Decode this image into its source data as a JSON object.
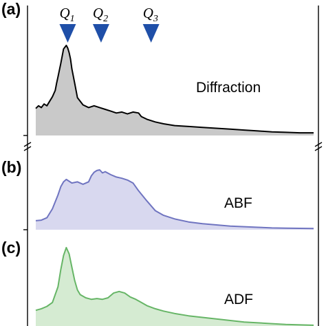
{
  "chart_data": [
    {
      "type": "area",
      "panel_label": "(a)",
      "label": "Diffraction",
      "line_color": "#000000",
      "fill_color": "#c9c9c9",
      "x": [
        0,
        0.01,
        0.02,
        0.03,
        0.04,
        0.05,
        0.06,
        0.07,
        0.075,
        0.08,
        0.09,
        0.1,
        0.11,
        0.115,
        0.12,
        0.125,
        0.13,
        0.14,
        0.15,
        0.17,
        0.19,
        0.21,
        0.23,
        0.25,
        0.27,
        0.29,
        0.31,
        0.33,
        0.35,
        0.37,
        0.38,
        0.4,
        0.43,
        0.46,
        0.5,
        0.55,
        0.6,
        0.65,
        0.7,
        0.75,
        0.8,
        0.85,
        0.9,
        0.95,
        1.0
      ],
      "y": [
        0.3,
        0.33,
        0.31,
        0.35,
        0.33,
        0.38,
        0.43,
        0.5,
        0.58,
        0.65,
        0.8,
        0.96,
        1.0,
        0.97,
        0.92,
        0.85,
        0.74,
        0.58,
        0.42,
        0.34,
        0.31,
        0.33,
        0.31,
        0.29,
        0.27,
        0.25,
        0.26,
        0.24,
        0.26,
        0.25,
        0.21,
        0.18,
        0.15,
        0.13,
        0.11,
        0.1,
        0.09,
        0.08,
        0.07,
        0.06,
        0.05,
        0.04,
        0.035,
        0.03,
        0.03
      ],
      "markers": [
        {
          "text": "Q",
          "sub": "1",
          "x": 0.115
        },
        {
          "text": "Q",
          "sub": "2",
          "x": 0.235
        },
        {
          "text": "Q",
          "sub": "3",
          "x": 0.415
        }
      ]
    },
    {
      "type": "area",
      "panel_label": "(b)",
      "label": "ABF",
      "line_color": "#6f74c0",
      "fill_color": "#d8d8ef",
      "x": [
        0,
        0.02,
        0.04,
        0.06,
        0.08,
        0.09,
        0.1,
        0.11,
        0.13,
        0.15,
        0.17,
        0.19,
        0.2,
        0.21,
        0.22,
        0.23,
        0.24,
        0.25,
        0.27,
        0.29,
        0.31,
        0.33,
        0.35,
        0.37,
        0.4,
        0.43,
        0.46,
        0.5,
        0.55,
        0.6,
        0.65,
        0.7,
        0.75,
        0.8,
        0.85,
        0.9,
        1.0
      ],
      "y": [
        0.15,
        0.16,
        0.2,
        0.35,
        0.58,
        0.72,
        0.8,
        0.84,
        0.78,
        0.8,
        0.76,
        0.8,
        0.9,
        0.96,
        0.99,
        1.0,
        0.95,
        0.97,
        0.92,
        0.88,
        0.86,
        0.83,
        0.78,
        0.65,
        0.48,
        0.32,
        0.24,
        0.18,
        0.13,
        0.1,
        0.08,
        0.06,
        0.05,
        0.04,
        0.03,
        0.025,
        0.02
      ]
    },
    {
      "type": "area",
      "panel_label": "(c)",
      "label": "ADF",
      "line_color": "#66b566",
      "fill_color": "#d5ebd2",
      "x": [
        0,
        0.02,
        0.04,
        0.06,
        0.08,
        0.09,
        0.1,
        0.11,
        0.12,
        0.13,
        0.14,
        0.15,
        0.16,
        0.18,
        0.2,
        0.22,
        0.24,
        0.26,
        0.28,
        0.3,
        0.32,
        0.34,
        0.36,
        0.38,
        0.4,
        0.43,
        0.46,
        0.5,
        0.55,
        0.6,
        0.65,
        0.7,
        0.75,
        0.8,
        0.85,
        0.9,
        1.0
      ],
      "y": [
        0.2,
        0.22,
        0.25,
        0.3,
        0.5,
        0.72,
        0.9,
        1.0,
        0.92,
        0.75,
        0.58,
        0.46,
        0.4,
        0.36,
        0.34,
        0.35,
        0.34,
        0.36,
        0.42,
        0.44,
        0.42,
        0.37,
        0.34,
        0.3,
        0.26,
        0.22,
        0.19,
        0.16,
        0.13,
        0.11,
        0.09,
        0.07,
        0.05,
        0.04,
        0.03,
        0.02,
        0.01
      ]
    }
  ]
}
